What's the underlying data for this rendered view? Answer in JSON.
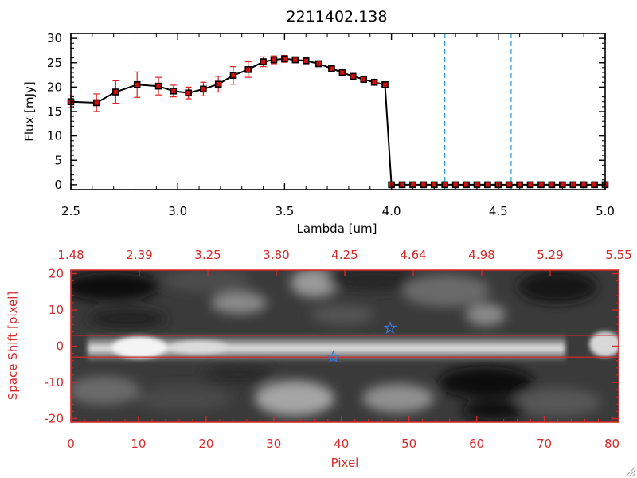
{
  "chart_data": [
    {
      "type": "line",
      "title": "2211402.138",
      "xlabel": "Lambda [um]",
      "ylabel": "Flux [mJy]",
      "xlim": [
        2.5,
        5.0
      ],
      "ylim": [
        -1,
        31
      ],
      "xticks": [
        "2.5",
        "3.0",
        "3.5",
        "4.0",
        "4.5",
        "5.0"
      ],
      "yticks": [
        "0",
        "5",
        "10",
        "15",
        "20",
        "25",
        "30"
      ],
      "grid": false,
      "series": [
        {
          "x": [
            2.5,
            2.62,
            2.71,
            2.81,
            2.91,
            2.98,
            3.05,
            3.12,
            3.19,
            3.26,
            3.33,
            3.4,
            3.45,
            3.5,
            3.55,
            3.6,
            3.66,
            3.72,
            3.77,
            3.82,
            3.87,
            3.92,
            3.97,
            4.0,
            4.05,
            4.1,
            4.15,
            4.2,
            4.25,
            4.3,
            4.35,
            4.4,
            4.45,
            4.5,
            4.55,
            4.6,
            4.65,
            4.7,
            4.75,
            4.8,
            4.85,
            4.9,
            4.95,
            5.0
          ],
          "y": [
            17.0,
            16.8,
            19.0,
            20.5,
            20.2,
            19.2,
            18.8,
            19.6,
            20.6,
            22.4,
            23.6,
            25.2,
            25.6,
            25.8,
            25.6,
            25.4,
            24.8,
            23.8,
            23.0,
            22.2,
            21.6,
            21.0,
            20.5,
            0,
            0,
            0,
            0,
            0,
            0,
            0,
            0,
            0,
            0,
            0,
            0,
            0,
            0,
            0,
            0,
            0,
            0,
            0,
            0,
            0
          ],
          "yerr": [
            1.2,
            1.8,
            2.3,
            2.6,
            1.8,
            1.2,
            1.2,
            1.4,
            1.6,
            1.8,
            1.6,
            1.0,
            0.8,
            0.7,
            0.6,
            0.6,
            0.6,
            0.6,
            0.6,
            0.6,
            0.6,
            0.6,
            0.6,
            0,
            0,
            0,
            0,
            0,
            0,
            0,
            0,
            0,
            0,
            0,
            0,
            0,
            0,
            0,
            0,
            0,
            0,
            0,
            0,
            0
          ]
        }
      ],
      "vlines": [
        4.25,
        4.56
      ],
      "colors": {
        "line": "#000000",
        "marker": "#d01010",
        "errorbar": "#e02020",
        "vline": "#1a9ad6"
      }
    },
    {
      "type": "heatmap",
      "xlabel": "Pixel",
      "ylabel": "Space Shift [pixel]",
      "xlim": [
        0,
        81
      ],
      "ylim": [
        -21,
        21
      ],
      "xticks": [
        "0",
        "10",
        "20",
        "30",
        "40",
        "50",
        "60",
        "70",
        "80"
      ],
      "yticks": [
        "-20",
        "-10",
        "0",
        "10",
        "20"
      ],
      "top_axis_ticks": [
        "1.48",
        "2.39",
        "3.25",
        "3.80",
        "4.25",
        "4.64",
        "4.98",
        "5.29",
        "5.55"
      ],
      "hlines": [
        3,
        -3
      ],
      "stars": [
        {
          "x": 47.2,
          "y": 5
        },
        {
          "x": 38.8,
          "y": -3
        }
      ],
      "colors": {
        "axes": "#d42a2a",
        "lines": "#d42a2a",
        "star": "#3a78d8"
      }
    }
  ]
}
